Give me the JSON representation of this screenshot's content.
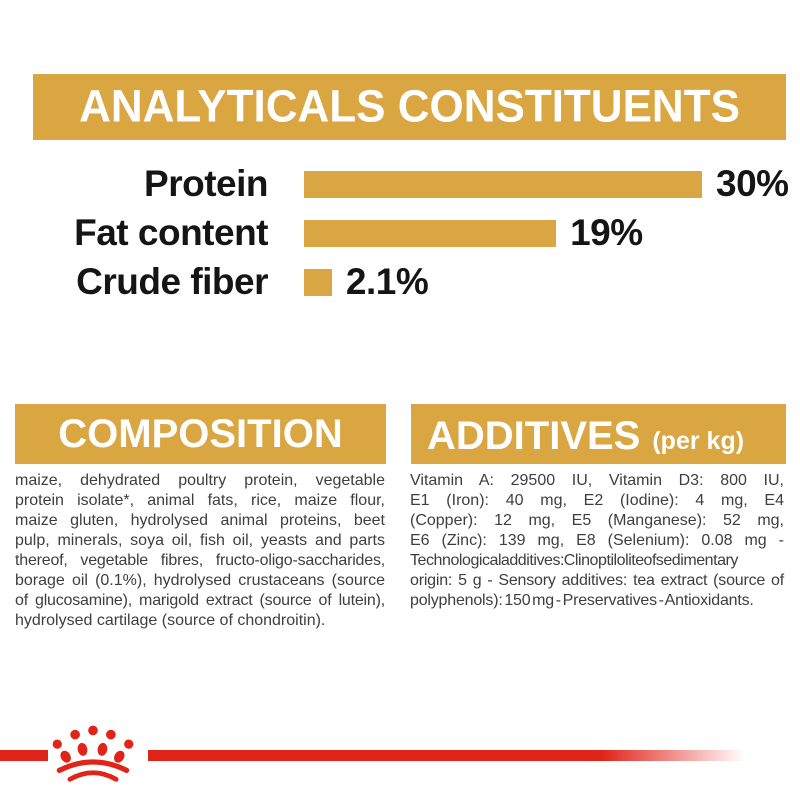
{
  "colors": {
    "gold": "#D9A642",
    "red": "#E0241A",
    "heading_text": "#FFFFFF",
    "chart_text": "#151515",
    "body_text": "#3E3E3E",
    "background": "#FFFFFF"
  },
  "analyticals": {
    "title": "ANALYTICALS CONSTITUENTS"
  },
  "chart_data": {
    "type": "bar",
    "title": "ANALYTICALS CONSTITUENTS",
    "categories": [
      "Protein",
      "Fat content",
      "Crude fiber"
    ],
    "values": [
      30,
      19,
      2.1
    ],
    "value_labels": [
      "30%",
      "19%",
      "2.1%"
    ],
    "xlim": [
      0,
      30
    ],
    "bar_color": "#DAA644",
    "orientation": "horizontal",
    "grid": false,
    "legend": false
  },
  "composition": {
    "title": "COMPOSITION",
    "lines": [
      "maize, dehydrated poultry protein, vegetable",
      "protein isolate*, animal fats, rice, maize flour,",
      "maize gluten, hydrolysed animal proteins, beet",
      "pulp, minerals, soya oil, fish oil, yeasts and parts",
      "thereof, vegetable fibres, fructo-oligo-saccharides,",
      "borage oil (0.1%), hydrolysed crustaceans (source",
      "of glucosamine), marigold extract (source of lutein),",
      "hydrolysed cartilage (source of chondroitin)."
    ]
  },
  "additives": {
    "title": "ADDITIVES",
    "title_suffix": "(per kg)",
    "lines": [
      "Vitamin A: 29500 IU, Vitamin D3: 800 IU,",
      "E1 (Iron): 40 mg, E2 (Iodine): 4 mg, E4",
      "(Copper): 12 mg, E5 (Manganese): 52 mg,",
      "E6 (Zinc): 139 mg, E8 (Selenium): 0.08 mg -",
      "Technological additives: Clinoptilolite of sedimentary",
      "origin: 5 g - Sensory additives: tea extract (source of",
      "polyphenols): 150 mg - Preservatives - Antioxidants."
    ]
  },
  "footer": {
    "logo_icon": "royal-canin-crown-logo"
  }
}
